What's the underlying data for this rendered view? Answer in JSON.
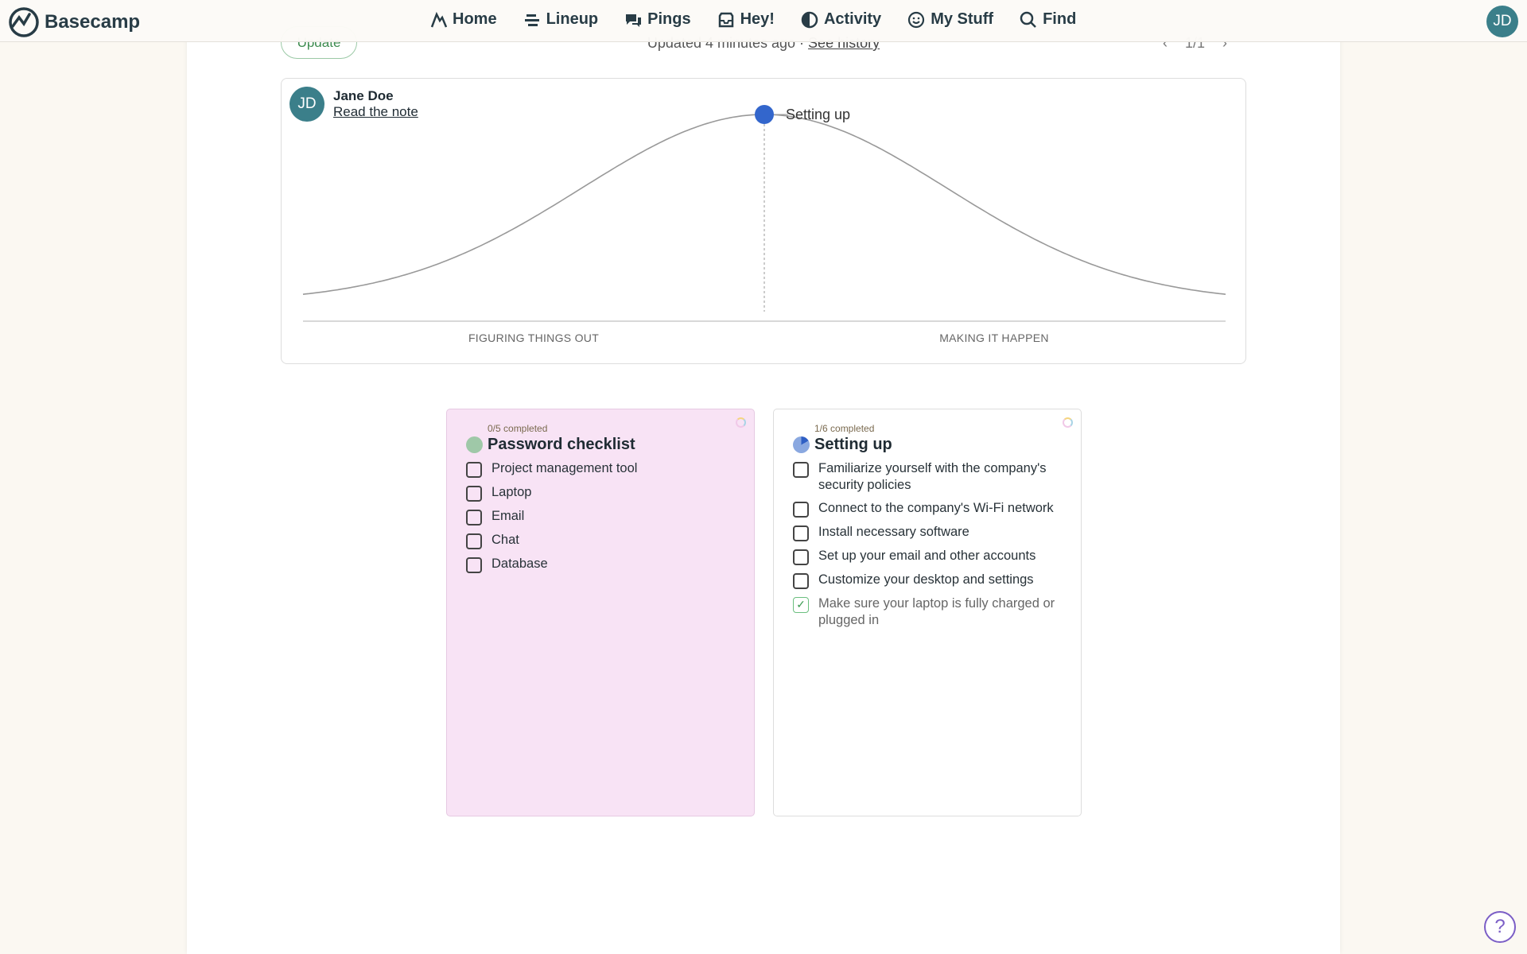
{
  "nav": {
    "brand": "Basecamp",
    "items": [
      {
        "label": "Home",
        "icon": "home-icon"
      },
      {
        "label": "Lineup",
        "icon": "lineup-icon"
      },
      {
        "label": "Pings",
        "icon": "pings-icon"
      },
      {
        "label": "Hey!",
        "icon": "inbox-icon"
      },
      {
        "label": "Activity",
        "icon": "activity-icon"
      },
      {
        "label": "My Stuff",
        "icon": "smiley-icon"
      },
      {
        "label": "Find",
        "icon": "search-icon"
      }
    ],
    "avatar": "JD"
  },
  "toolbar": {
    "update": "Update",
    "updated": "Updated 4 minutes ago ·",
    "see_history": "See history",
    "pager": "1/1"
  },
  "hill": {
    "author": "Jane Doe",
    "avatar": "JD",
    "read_note": "Read the note",
    "left_label": "FIGURING THINGS OUT",
    "right_label": "MAKING IT HAPPEN",
    "dots": [
      {
        "label": "Setting up",
        "position": 50,
        "color": "#3366cc"
      }
    ]
  },
  "lists": [
    {
      "count": "0/5 completed",
      "title": "Password checklist",
      "color": "#f8e3f5",
      "pie_color": "#9fc8a8",
      "items": [
        {
          "text": "Project management tool",
          "done": false
        },
        {
          "text": "Laptop",
          "done": false
        },
        {
          "text": "Email",
          "done": false
        },
        {
          "text": "Chat",
          "done": false
        },
        {
          "text": "Database",
          "done": false
        }
      ]
    },
    {
      "count": "1/6 completed",
      "title": "Setting up",
      "color": "#ffffff",
      "pie_color": "#8aa8e0",
      "items": [
        {
          "text": "Familiarize yourself with the company's security policies",
          "done": false
        },
        {
          "text": "Connect to the company's Wi-Fi network",
          "done": false
        },
        {
          "text": "Install necessary software",
          "done": false
        },
        {
          "text": "Set up your email and other accounts",
          "done": false
        },
        {
          "text": "Customize your desktop and settings",
          "done": false
        },
        {
          "text": "Make sure your laptop is fully charged or plugged in",
          "done": true
        }
      ]
    }
  ],
  "help": "?"
}
